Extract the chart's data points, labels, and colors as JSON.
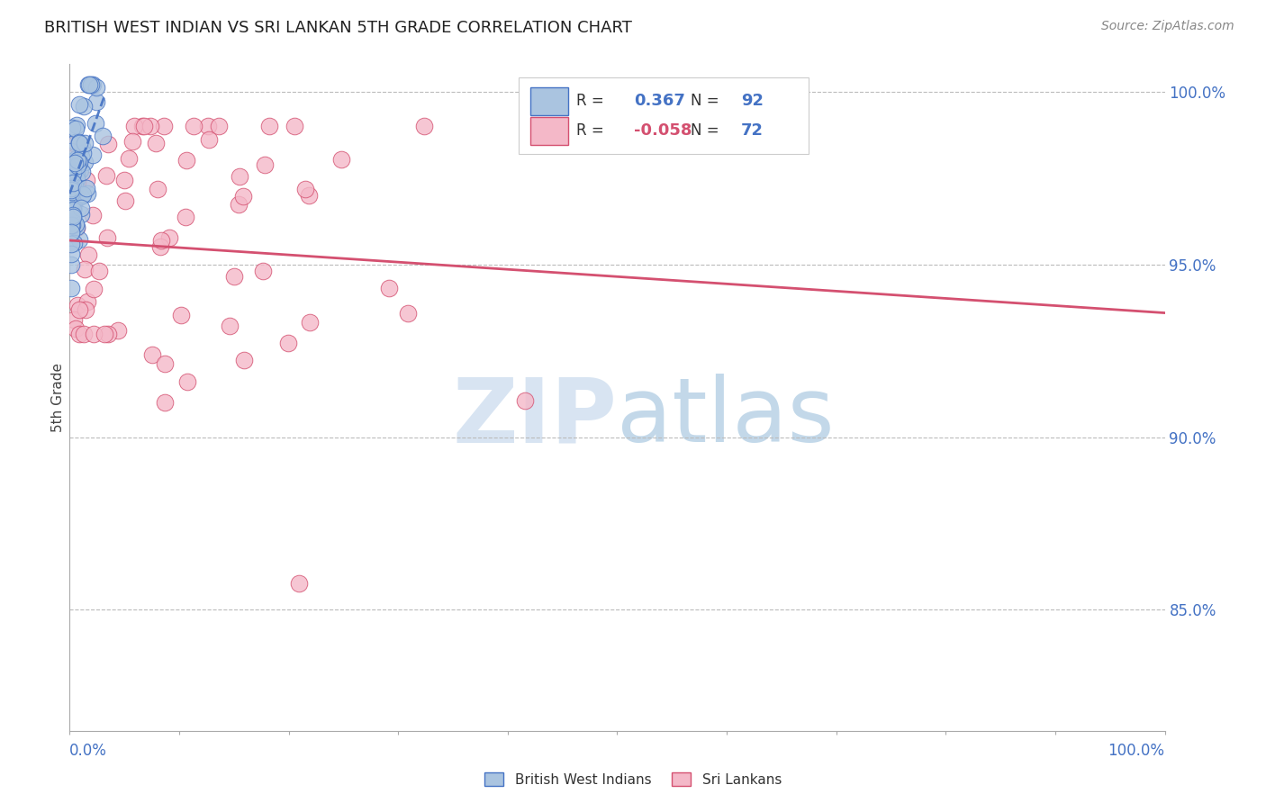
{
  "title": "BRITISH WEST INDIAN VS SRI LANKAN 5TH GRADE CORRELATION CHART",
  "source": "Source: ZipAtlas.com",
  "ylabel": "5th Grade",
  "legend_r_blue": "0.367",
  "legend_n_blue": "92",
  "legend_r_pink": "-0.058",
  "legend_n_pink": "72",
  "blue_fill_color": "#aac4e0",
  "blue_edge_color": "#4472c4",
  "pink_fill_color": "#f4b8c8",
  "pink_edge_color": "#d45070",
  "blue_trend_color": "#4472c4",
  "pink_trend_color": "#d45070",
  "title_color": "#222222",
  "axis_label_color": "#4472c4",
  "grid_color": "#bbbbbb",
  "watermark_color": "#c8d8ee",
  "xlim": [
    0.0,
    1.0
  ],
  "ylim": [
    0.815,
    1.008
  ],
  "right_yticks": [
    1.0,
    0.95,
    0.9,
    0.85
  ],
  "right_yticklabels": [
    "100.0%",
    "95.0%",
    "90.0%",
    "85.0%"
  ],
  "pink_trend_y0": 0.957,
  "pink_trend_y1": 0.936,
  "blue_trend_x0": 0.0,
  "blue_trend_x1": 0.032,
  "blue_trend_y0": 0.9705,
  "blue_trend_y1": 0.999
}
